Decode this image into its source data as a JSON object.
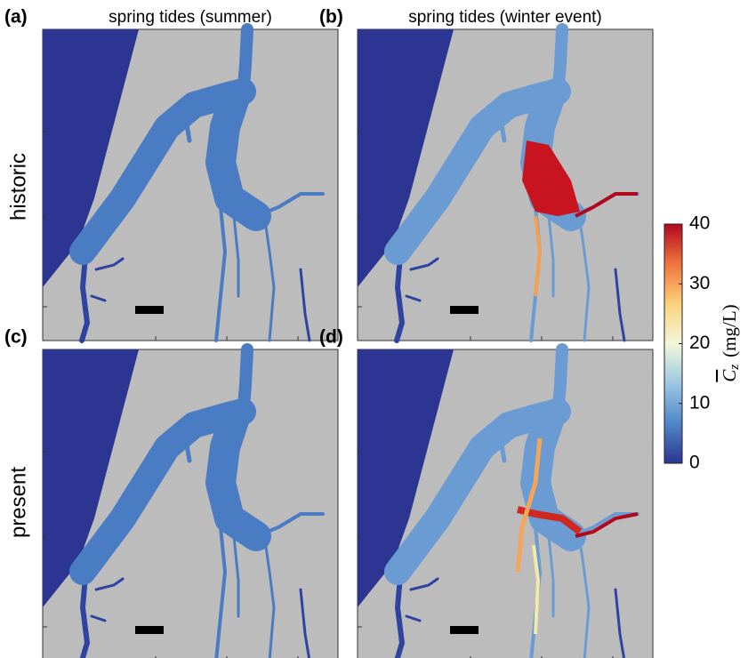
{
  "panels": [
    {
      "letter": "(a)",
      "title": "spring tides (summer)"
    },
    {
      "letter": "(b)",
      "title": "spring tides (winter event)"
    },
    {
      "letter": "(c)"
    },
    {
      "letter": "(d)"
    }
  ],
  "rows": [
    "historic",
    "present"
  ],
  "colorbar": {
    "lim": [
      0,
      40
    ],
    "ticks": [
      0,
      10,
      20,
      30,
      40
    ],
    "colormap": [
      "#2c3592",
      "#4f86c6",
      "#9cc7e3",
      "#f3f7dc",
      "#fbd27a",
      "#f0743e",
      "#b2081e"
    ],
    "label": {
      "symbol": "C",
      "subscript": "z",
      "unit": "(mg/L)"
    }
  }
}
